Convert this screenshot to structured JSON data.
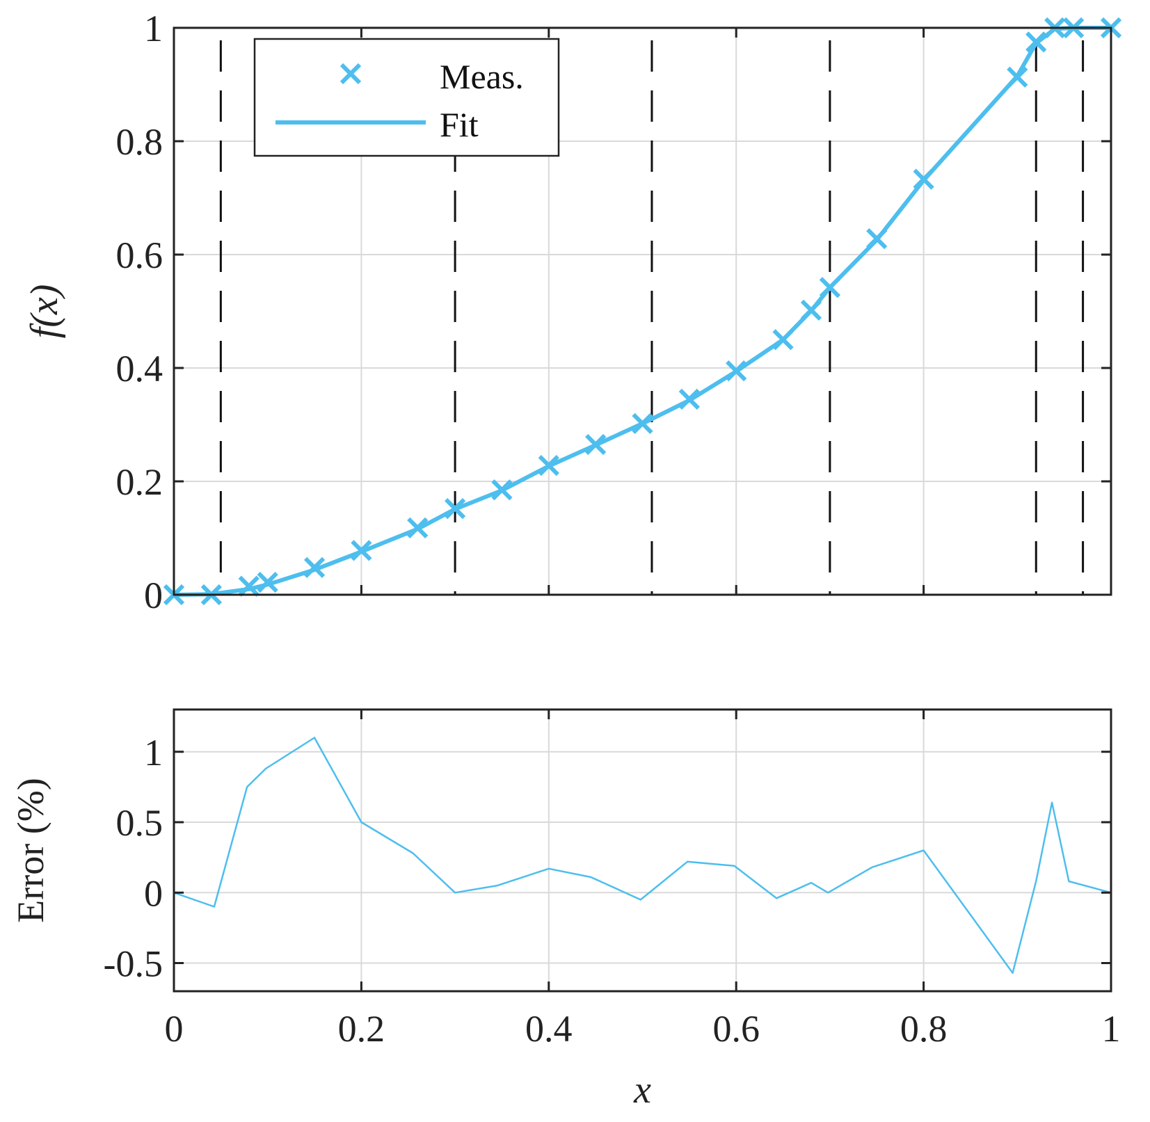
{
  "colors": {
    "series": "#4DBEEE",
    "axis": "#222222",
    "grid": "#d9d9d9",
    "segment_lines": "#111111",
    "background": "#ffffff"
  },
  "chart_data": [
    {
      "type": "line",
      "panel": "top",
      "xlabel": "",
      "ylabel": "f(x)",
      "xlim": [
        0,
        1
      ],
      "ylim": [
        0,
        1
      ],
      "xticks": [
        0,
        0.2,
        0.4,
        0.6,
        0.8,
        1
      ],
      "xtick_labels_shown": false,
      "yticks": [
        0,
        0.2,
        0.4,
        0.6,
        0.8,
        1
      ],
      "ytick_labels": [
        "0",
        "0.2",
        "0.4",
        "0.6",
        "0.8",
        "1"
      ],
      "grid": true,
      "legend": {
        "placement": "top-left",
        "entries": [
          "Meas.",
          "Fit"
        ]
      },
      "vertical_dashed_lines_x": [
        0.05,
        0.3,
        0.51,
        0.7,
        0.92,
        0.97
      ],
      "series": [
        {
          "name": "Meas.",
          "marker": "x",
          "x": [
            0,
            0.04,
            0.08,
            0.1,
            0.15,
            0.2,
            0.26,
            0.3,
            0.35,
            0.4,
            0.45,
            0.5,
            0.55,
            0.6,
            0.65,
            0.68,
            0.7,
            0.75,
            0.8,
            0.9,
            0.92,
            0.94,
            0.96,
            1.0
          ],
          "y": [
            0,
            0,
            0.015,
            0.022,
            0.048,
            0.078,
            0.118,
            0.152,
            0.185,
            0.228,
            0.265,
            0.302,
            0.345,
            0.395,
            0.45,
            0.502,
            0.542,
            0.628,
            0.733,
            0.913,
            0.975,
            1.0,
            1.0,
            1.0
          ]
        },
        {
          "name": "Fit",
          "x": [
            0,
            0.04,
            0.08,
            0.1,
            0.15,
            0.2,
            0.26,
            0.3,
            0.35,
            0.4,
            0.45,
            0.5,
            0.55,
            0.6,
            0.65,
            0.68,
            0.7,
            0.75,
            0.8,
            0.9,
            0.92,
            0.94,
            0.96,
            1.0
          ],
          "y": [
            0,
            0.001,
            0.01,
            0.018,
            0.044,
            0.076,
            0.116,
            0.151,
            0.184,
            0.227,
            0.264,
            0.302,
            0.343,
            0.394,
            0.45,
            0.501,
            0.542,
            0.626,
            0.731,
            0.915,
            0.973,
            0.998,
            1.0,
            1.0
          ]
        }
      ]
    },
    {
      "type": "line",
      "panel": "bottom",
      "xlabel": "x",
      "ylabel": "Error (%)",
      "xlim": [
        0,
        1
      ],
      "ylim": [
        -0.7,
        1.3
      ],
      "xticks": [
        0,
        0.2,
        0.4,
        0.6,
        0.8,
        1
      ],
      "xtick_labels": [
        "0",
        "0.2",
        "0.4",
        "0.6",
        "0.8",
        "1"
      ],
      "yticks": [
        -0.5,
        0,
        0.5,
        1
      ],
      "ytick_labels": [
        "-0.5",
        "0",
        "0.5",
        "1"
      ],
      "grid": true,
      "series": [
        {
          "x": [
            0,
            0.043,
            0.078,
            0.098,
            0.15,
            0.2,
            0.255,
            0.3,
            0.345,
            0.4,
            0.445,
            0.498,
            0.548,
            0.598,
            0.643,
            0.68,
            0.698,
            0.745,
            0.8,
            0.895,
            0.92,
            0.937,
            0.955,
            1.0
          ],
          "y": [
            0,
            -0.1,
            0.75,
            0.88,
            1.1,
            0.5,
            0.28,
            0,
            0.05,
            0.17,
            0.11,
            -0.05,
            0.22,
            0.19,
            -0.04,
            0.07,
            0,
            0.18,
            0.3,
            -0.57,
            0.08,
            0.64,
            0.08,
            0
          ]
        }
      ]
    }
  ]
}
